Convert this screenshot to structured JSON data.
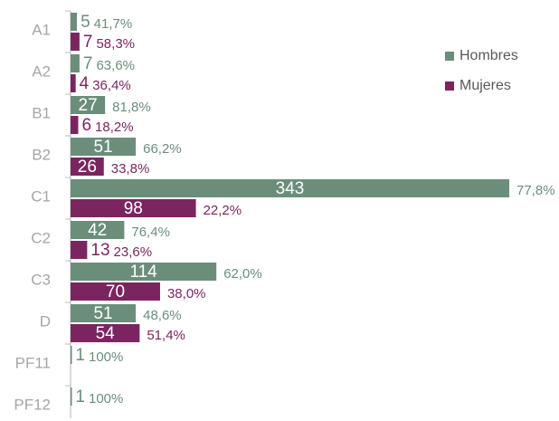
{
  "chart_data": {
    "type": "bar",
    "orientation": "horizontal",
    "categories": [
      "A1",
      "A2",
      "B1",
      "B2",
      "C1",
      "C2",
      "C3",
      "D",
      "PF11",
      "PF12"
    ],
    "series": [
      {
        "name": "Hombres",
        "color": "#6b8e7b",
        "values": [
          5,
          7,
          27,
          51,
          343,
          42,
          114,
          51,
          1,
          1
        ],
        "percent_labels": [
          "41,7%",
          "63,6%",
          "81,8%",
          "66,2%",
          "77,8%",
          "76,4%",
          "62,0%",
          "48,6%",
          "100%",
          "100%"
        ]
      },
      {
        "name": "Mujeres",
        "color": "#7b2560",
        "values": [
          7,
          4,
          6,
          26,
          98,
          13,
          70,
          54,
          null,
          null
        ],
        "percent_labels": [
          "58,3%",
          "36,4%",
          "18,2%",
          "33,8%",
          "22,2%",
          "23,6%",
          "38,0%",
          "51,4%",
          null,
          null
        ]
      }
    ],
    "legend": "top-right"
  }
}
